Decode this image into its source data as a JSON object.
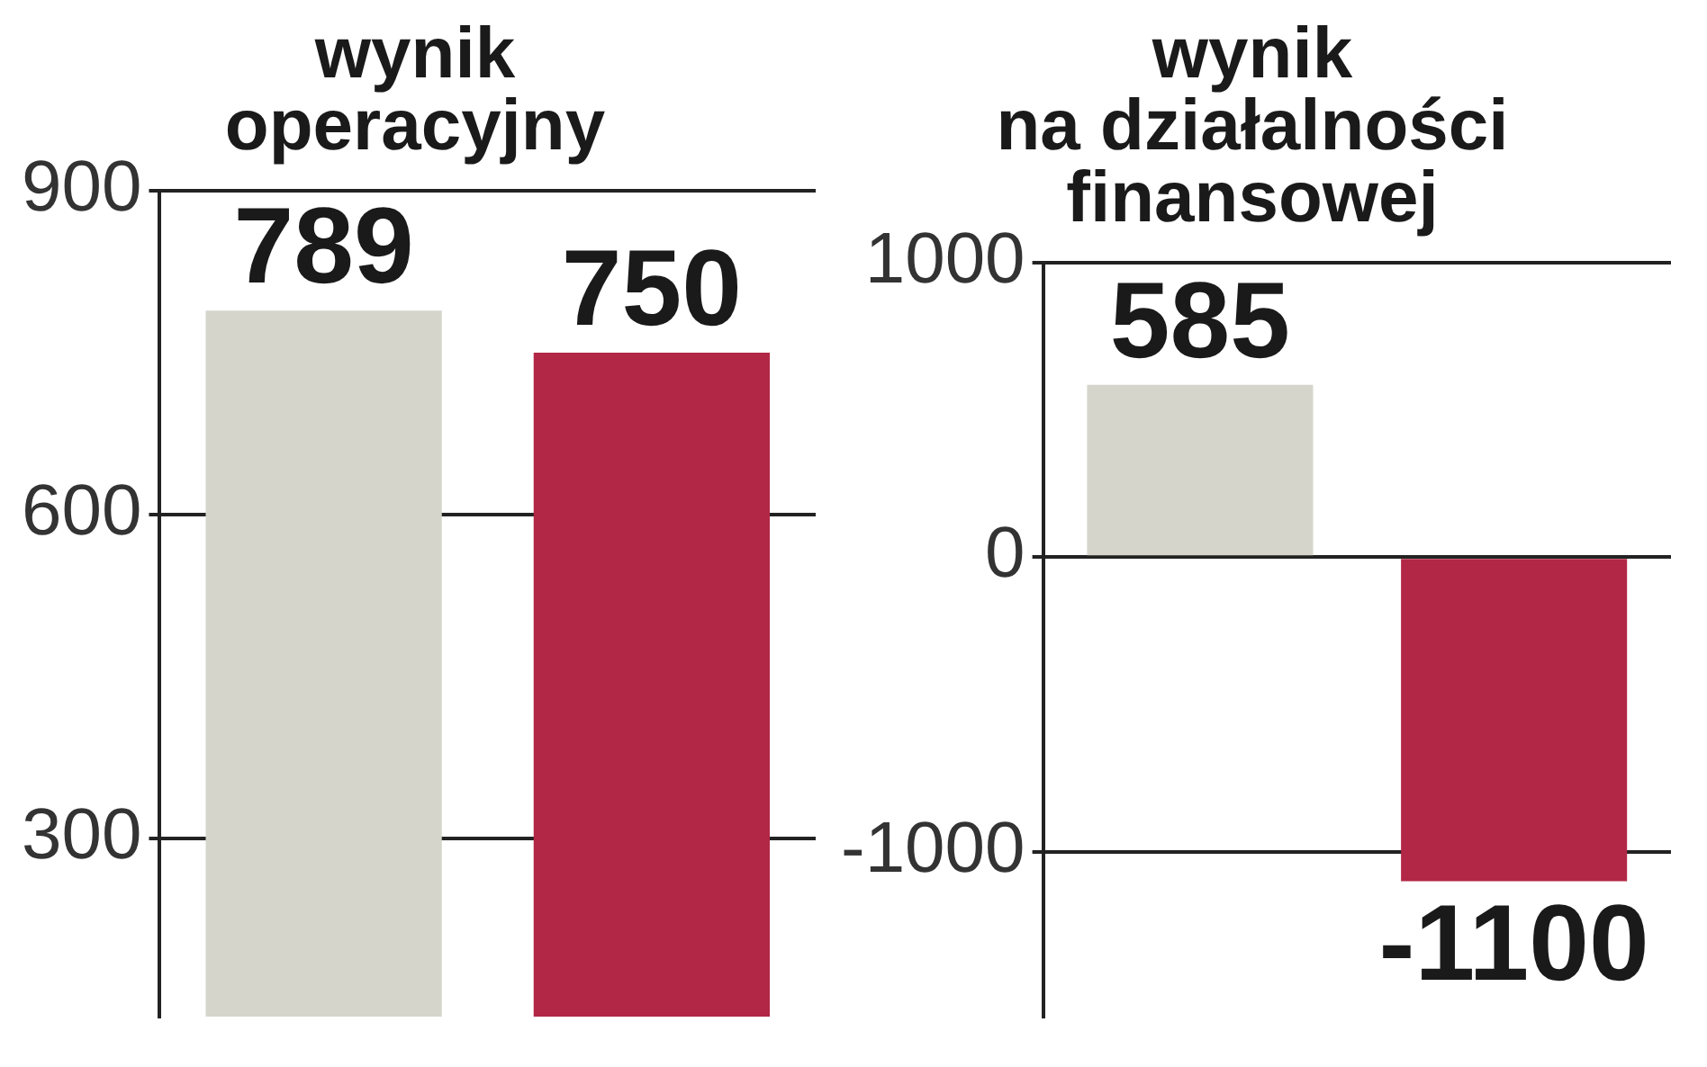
{
  "chart_data": [
    {
      "type": "bar",
      "title": "wynik\noperacyjny",
      "categories": [
        null,
        null
      ],
      "series": [
        {
          "values": [
            789,
            750
          ],
          "colors": [
            "#d6d5cb",
            "#b22746"
          ]
        }
      ],
      "ylim": [
        135,
        900
      ],
      "yticks": [
        300,
        600,
        900
      ],
      "grid": "y",
      "data_labels": true
    },
    {
      "type": "bar",
      "title": "wynik\nna działalności\nfinansowej",
      "categories": [
        null,
        null
      ],
      "series": [
        {
          "values": [
            585,
            -1100
          ],
          "colors": [
            "#d6d5cb",
            "#b22746"
          ]
        }
      ],
      "ylim": [
        -1560,
        1000
      ],
      "yticks": [
        -1000,
        0,
        1000
      ],
      "grid": "y",
      "data_labels": true
    }
  ]
}
